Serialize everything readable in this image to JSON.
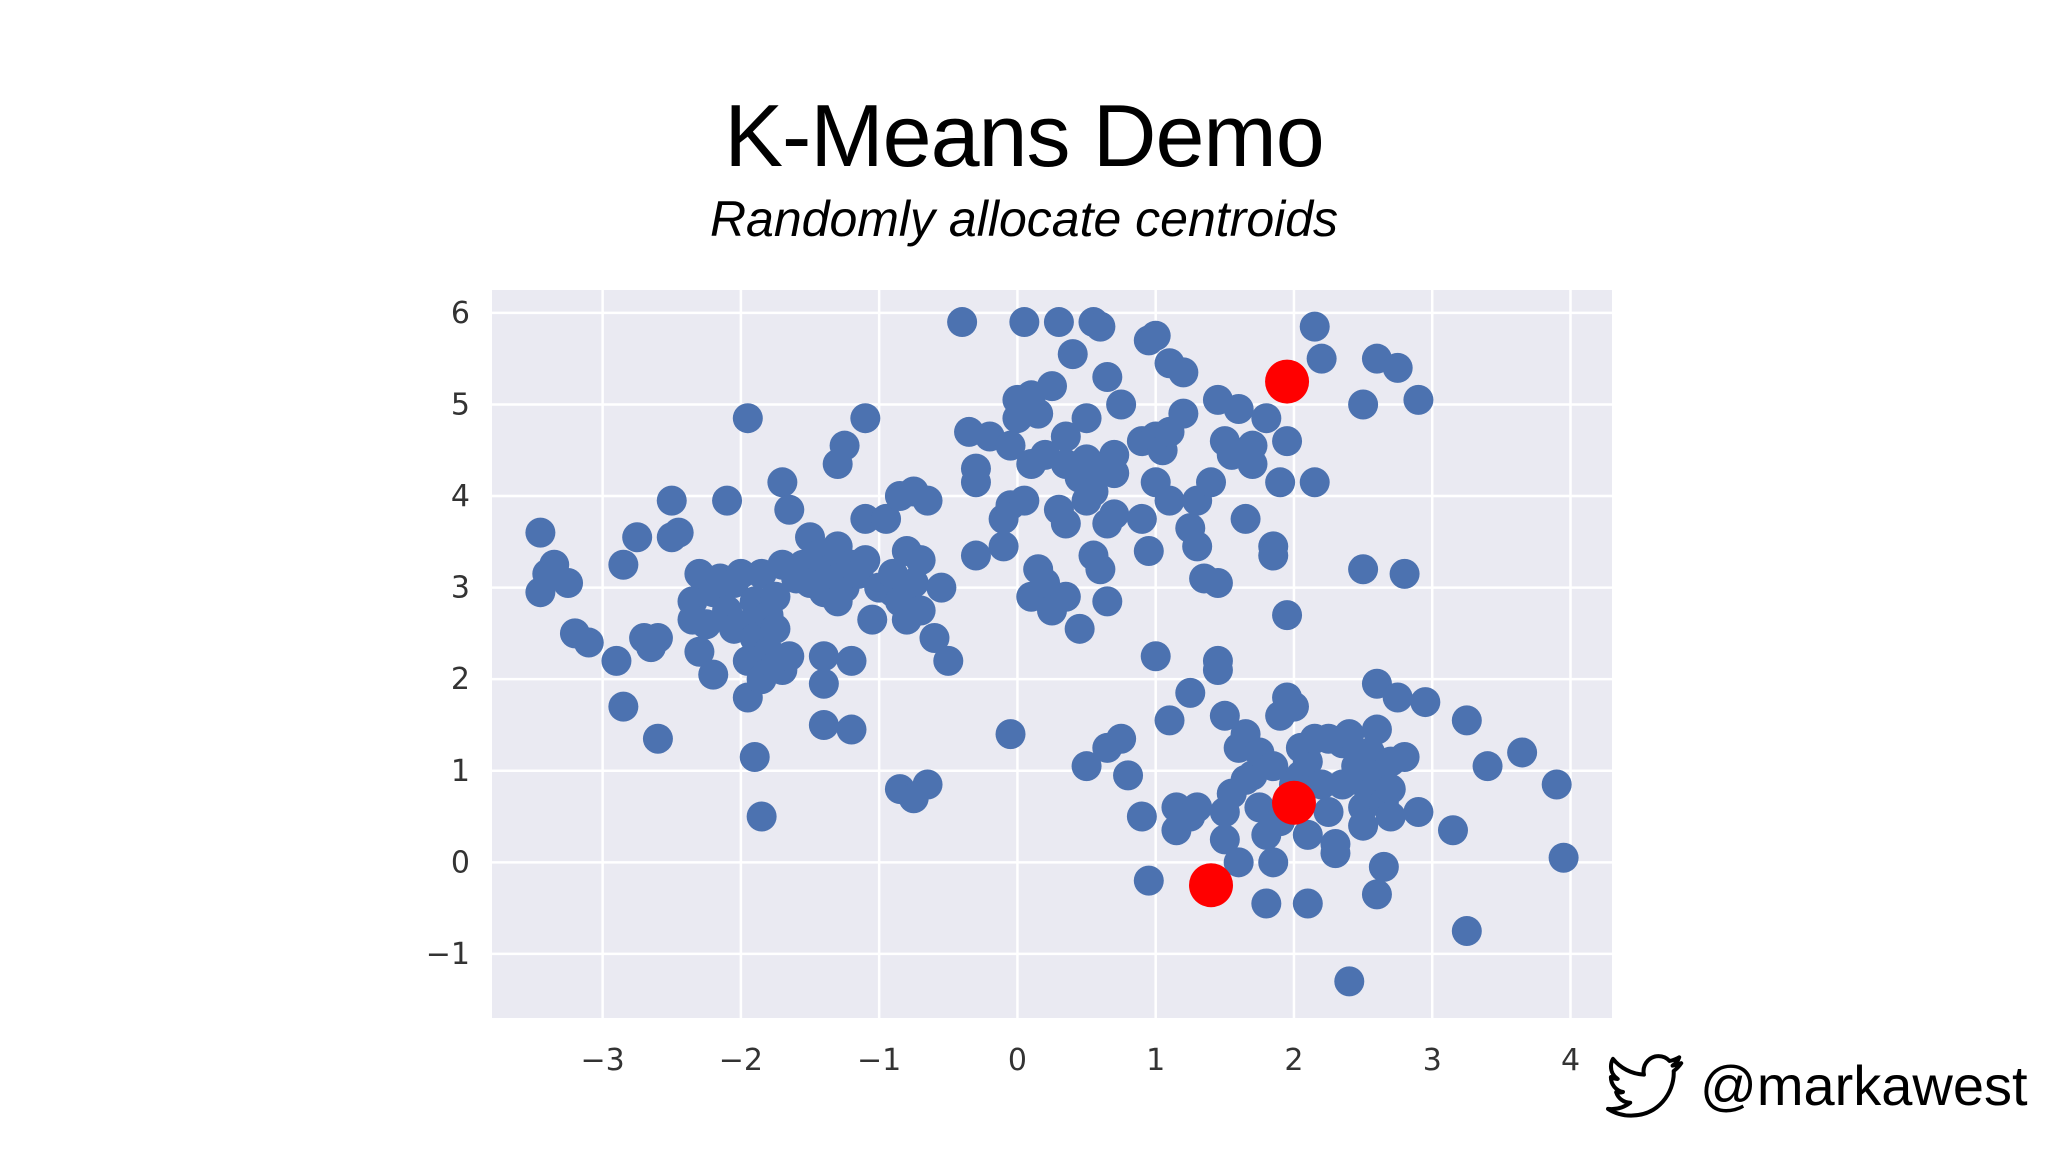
{
  "slide": {
    "title": "K-Means Demo",
    "subtitle": "Randomly allocate centroids",
    "twitter_handle": "@markawest",
    "icon": "twitter-bird-icon"
  },
  "chart_data": {
    "type": "scatter",
    "xlim": [
      -3.8,
      4.3
    ],
    "ylim": [
      -1.7,
      6.25
    ],
    "xticks": [
      -3,
      -2,
      -1,
      0,
      1,
      2,
      3,
      4
    ],
    "yticks": [
      -1,
      0,
      1,
      2,
      3,
      4,
      5,
      6
    ],
    "xtick_labels": [
      "−3",
      "−2",
      "−1",
      "0",
      "1",
      "2",
      "3",
      "4"
    ],
    "ytick_labels": [
      "−1",
      "0",
      "1",
      "2",
      "3",
      "4",
      "5",
      "6"
    ],
    "grid": true,
    "colors": {
      "points": "#4c72b0",
      "centroids": "#ff0000",
      "plot_background": "#eaeaf2",
      "grid": "#ffffff"
    },
    "series": [
      {
        "role": "points",
        "points": [
          [
            -3.45,
            3.6
          ],
          [
            -3.35,
            3.25
          ],
          [
            -3.25,
            3.05
          ],
          [
            -3.45,
            2.95
          ],
          [
            -3.4,
            3.15
          ],
          [
            -3.2,
            2.5
          ],
          [
            -3.1,
            2.4
          ],
          [
            -2.9,
            2.2
          ],
          [
            -2.85,
            1.7
          ],
          [
            -2.85,
            3.25
          ],
          [
            -2.75,
            3.55
          ],
          [
            -2.7,
            2.45
          ],
          [
            -2.65,
            2.35
          ],
          [
            -2.6,
            2.45
          ],
          [
            -2.6,
            1.35
          ],
          [
            -2.5,
            3.95
          ],
          [
            -2.5,
            3.55
          ],
          [
            -2.45,
            3.6
          ],
          [
            -2.35,
            2.85
          ],
          [
            -2.35,
            2.65
          ],
          [
            -2.3,
            3.15
          ],
          [
            -2.3,
            2.3
          ],
          [
            -2.25,
            2.6
          ],
          [
            -2.2,
            2.95
          ],
          [
            -2.2,
            2.05
          ],
          [
            -2.15,
            3.1
          ],
          [
            -2.1,
            2.75
          ],
          [
            -2.1,
            3.95
          ],
          [
            -2.05,
            2.55
          ],
          [
            -2.05,
            3.05
          ],
          [
            -2.0,
            3.15
          ],
          [
            -1.95,
            2.2
          ],
          [
            -1.95,
            2.6
          ],
          [
            -1.95,
            4.85
          ],
          [
            -1.95,
            1.8
          ],
          [
            -1.9,
            2.85
          ],
          [
            -1.9,
            2.45
          ],
          [
            -1.9,
            1.15
          ],
          [
            -1.85,
            3.15
          ],
          [
            -1.85,
            2.0
          ],
          [
            -1.85,
            0.5
          ],
          [
            -1.8,
            2.7
          ],
          [
            -1.8,
            2.3
          ],
          [
            -1.75,
            2.15
          ],
          [
            -1.75,
            2.55
          ],
          [
            -1.75,
            2.9
          ],
          [
            -1.7,
            4.15
          ],
          [
            -1.7,
            3.25
          ],
          [
            -1.7,
            2.1
          ],
          [
            -1.65,
            2.25
          ],
          [
            -1.65,
            3.85
          ],
          [
            -1.6,
            3.1
          ],
          [
            -1.55,
            3.25
          ],
          [
            -1.5,
            3.05
          ],
          [
            -1.5,
            3.55
          ],
          [
            -1.45,
            3.35
          ],
          [
            -1.4,
            2.95
          ],
          [
            -1.4,
            2.25
          ],
          [
            -1.4,
            1.95
          ],
          [
            -1.4,
            1.5
          ],
          [
            -1.35,
            3.2
          ],
          [
            -1.3,
            4.35
          ],
          [
            -1.3,
            3.1
          ],
          [
            -1.3,
            2.85
          ],
          [
            -1.3,
            3.45
          ],
          [
            -1.25,
            4.55
          ],
          [
            -1.25,
            3.0
          ],
          [
            -1.2,
            3.25
          ],
          [
            -1.2,
            2.2
          ],
          [
            -1.2,
            1.45
          ],
          [
            -1.15,
            3.15
          ],
          [
            -1.1,
            3.3
          ],
          [
            -1.1,
            3.75
          ],
          [
            -1.1,
            4.85
          ],
          [
            -1.05,
            2.65
          ],
          [
            -1.0,
            3.0
          ],
          [
            -0.95,
            3.75
          ],
          [
            -0.9,
            2.95
          ],
          [
            -0.9,
            3.15
          ],
          [
            -0.85,
            4.0
          ],
          [
            -0.85,
            2.85
          ],
          [
            -0.85,
            0.8
          ],
          [
            -0.8,
            2.65
          ],
          [
            -0.8,
            3.4
          ],
          [
            -0.75,
            4.05
          ],
          [
            -0.75,
            3.05
          ],
          [
            -0.75,
            0.7
          ],
          [
            -0.7,
            2.75
          ],
          [
            -0.7,
            3.3
          ],
          [
            -0.65,
            3.95
          ],
          [
            -0.65,
            0.85
          ],
          [
            -0.6,
            2.45
          ],
          [
            -0.55,
            3.0
          ],
          [
            -0.5,
            2.2
          ],
          [
            -0.4,
            5.9
          ],
          [
            -0.35,
            4.7
          ],
          [
            -0.3,
            4.3
          ],
          [
            -0.3,
            4.15
          ],
          [
            -0.3,
            3.35
          ],
          [
            -0.2,
            4.65
          ],
          [
            -0.1,
            3.75
          ],
          [
            -0.1,
            3.45
          ],
          [
            -0.05,
            1.4
          ],
          [
            -0.05,
            4.55
          ],
          [
            -0.05,
            3.9
          ],
          [
            0.0,
            5.05
          ],
          [
            0.0,
            4.85
          ],
          [
            0.05,
            5.9
          ],
          [
            0.05,
            3.95
          ],
          [
            0.1,
            4.35
          ],
          [
            0.1,
            2.9
          ],
          [
            0.1,
            5.1
          ],
          [
            0.15,
            4.9
          ],
          [
            0.15,
            3.2
          ],
          [
            0.2,
            4.45
          ],
          [
            0.2,
            3.05
          ],
          [
            0.25,
            5.2
          ],
          [
            0.25,
            2.75
          ],
          [
            0.3,
            5.9
          ],
          [
            0.3,
            3.85
          ],
          [
            0.35,
            4.65
          ],
          [
            0.35,
            4.35
          ],
          [
            0.35,
            2.9
          ],
          [
            0.35,
            3.7
          ],
          [
            0.4,
            5.55
          ],
          [
            0.45,
            4.2
          ],
          [
            0.45,
            2.55
          ],
          [
            0.5,
            4.85
          ],
          [
            0.5,
            4.4
          ],
          [
            0.5,
            3.95
          ],
          [
            0.5,
            1.05
          ],
          [
            0.55,
            4.05
          ],
          [
            0.55,
            5.9
          ],
          [
            0.55,
            3.35
          ],
          [
            0.6,
            4.3
          ],
          [
            0.6,
            5.85
          ],
          [
            0.6,
            3.2
          ],
          [
            0.65,
            5.3
          ],
          [
            0.65,
            3.7
          ],
          [
            0.65,
            2.85
          ],
          [
            0.65,
            1.25
          ],
          [
            0.7,
            4.45
          ],
          [
            0.7,
            4.25
          ],
          [
            0.7,
            3.8
          ],
          [
            0.75,
            5.0
          ],
          [
            0.75,
            1.35
          ],
          [
            0.8,
            0.95
          ],
          [
            0.9,
            3.75
          ],
          [
            0.9,
            4.6
          ],
          [
            0.9,
            0.5
          ],
          [
            0.95,
            5.7
          ],
          [
            0.95,
            3.4
          ],
          [
            0.95,
            -0.2
          ],
          [
            1.0,
            5.75
          ],
          [
            1.0,
            4.15
          ],
          [
            1.0,
            2.25
          ],
          [
            1.0,
            4.65
          ],
          [
            1.05,
            4.5
          ],
          [
            1.1,
            5.45
          ],
          [
            1.1,
            4.7
          ],
          [
            1.1,
            3.95
          ],
          [
            1.1,
            1.55
          ],
          [
            1.15,
            0.6
          ],
          [
            1.15,
            0.35
          ],
          [
            1.2,
            5.35
          ],
          [
            1.2,
            4.9
          ],
          [
            1.25,
            3.65
          ],
          [
            1.25,
            1.85
          ],
          [
            1.25,
            0.5
          ],
          [
            1.3,
            3.95
          ],
          [
            1.3,
            3.45
          ],
          [
            1.3,
            0.6
          ],
          [
            1.35,
            3.1
          ],
          [
            1.4,
            4.15
          ],
          [
            1.45,
            5.05
          ],
          [
            1.45,
            3.05
          ],
          [
            1.45,
            2.2
          ],
          [
            1.45,
            2.1
          ],
          [
            1.5,
            4.6
          ],
          [
            1.5,
            1.6
          ],
          [
            1.5,
            0.55
          ],
          [
            1.5,
            0.25
          ],
          [
            1.55,
            4.45
          ],
          [
            1.55,
            0.75
          ],
          [
            1.6,
            4.95
          ],
          [
            1.6,
            0.0
          ],
          [
            1.6,
            1.25
          ],
          [
            1.65,
            3.75
          ],
          [
            1.65,
            0.9
          ],
          [
            1.65,
            1.4
          ],
          [
            1.7,
            4.35
          ],
          [
            1.7,
            4.55
          ],
          [
            1.7,
            0.95
          ],
          [
            1.75,
            1.2
          ],
          [
            1.75,
            0.6
          ],
          [
            1.8,
            4.85
          ],
          [
            1.8,
            0.3
          ],
          [
            1.8,
            -0.45
          ],
          [
            1.85,
            3.45
          ],
          [
            1.85,
            3.35
          ],
          [
            1.85,
            1.05
          ],
          [
            1.85,
            0.0
          ],
          [
            1.9,
            4.15
          ],
          [
            1.9,
            1.6
          ],
          [
            1.9,
            0.45
          ],
          [
            1.95,
            2.7
          ],
          [
            1.95,
            4.6
          ],
          [
            1.95,
            1.8
          ],
          [
            2.0,
            1.7
          ],
          [
            2.0,
            0.85
          ],
          [
            2.05,
            0.95
          ],
          [
            2.05,
            1.25
          ],
          [
            2.1,
            1.1
          ],
          [
            2.1,
            0.3
          ],
          [
            2.1,
            -0.45
          ],
          [
            2.15,
            1.35
          ],
          [
            2.15,
            4.15
          ],
          [
            2.15,
            5.85
          ],
          [
            2.2,
            5.5
          ],
          [
            2.2,
            0.85
          ],
          [
            2.25,
            0.55
          ],
          [
            2.25,
            1.35
          ],
          [
            2.3,
            0.1
          ],
          [
            2.3,
            0.2
          ],
          [
            2.35,
            1.3
          ],
          [
            2.35,
            0.85
          ],
          [
            2.4,
            -1.3
          ],
          [
            2.4,
            1.4
          ],
          [
            2.45,
            1.05
          ],
          [
            2.45,
            0.9
          ],
          [
            2.5,
            0.6
          ],
          [
            2.5,
            0.4
          ],
          [
            2.5,
            1.15
          ],
          [
            2.5,
            5.0
          ],
          [
            2.5,
            3.2
          ],
          [
            2.55,
            1.2
          ],
          [
            2.55,
            0.75
          ],
          [
            2.6,
            0.95
          ],
          [
            2.6,
            1.45
          ],
          [
            2.6,
            -0.35
          ],
          [
            2.6,
            1.95
          ],
          [
            2.6,
            5.5
          ],
          [
            2.65,
            0.65
          ],
          [
            2.65,
            -0.05
          ],
          [
            2.7,
            0.8
          ],
          [
            2.7,
            1.1
          ],
          [
            2.7,
            0.5
          ],
          [
            2.75,
            1.8
          ],
          [
            2.75,
            5.4
          ],
          [
            2.8,
            3.15
          ],
          [
            2.8,
            1.15
          ],
          [
            2.9,
            0.55
          ],
          [
            2.9,
            5.05
          ],
          [
            2.95,
            1.75
          ],
          [
            3.15,
            0.35
          ],
          [
            3.25,
            -0.75
          ],
          [
            3.25,
            1.55
          ],
          [
            3.4,
            1.05
          ],
          [
            3.65,
            1.2
          ],
          [
            3.9,
            0.85
          ],
          [
            3.95,
            0.05
          ]
        ]
      },
      {
        "role": "centroids",
        "points": [
          [
            1.95,
            5.25
          ],
          [
            2.0,
            0.65
          ],
          [
            1.4,
            -0.25
          ]
        ]
      }
    ]
  }
}
